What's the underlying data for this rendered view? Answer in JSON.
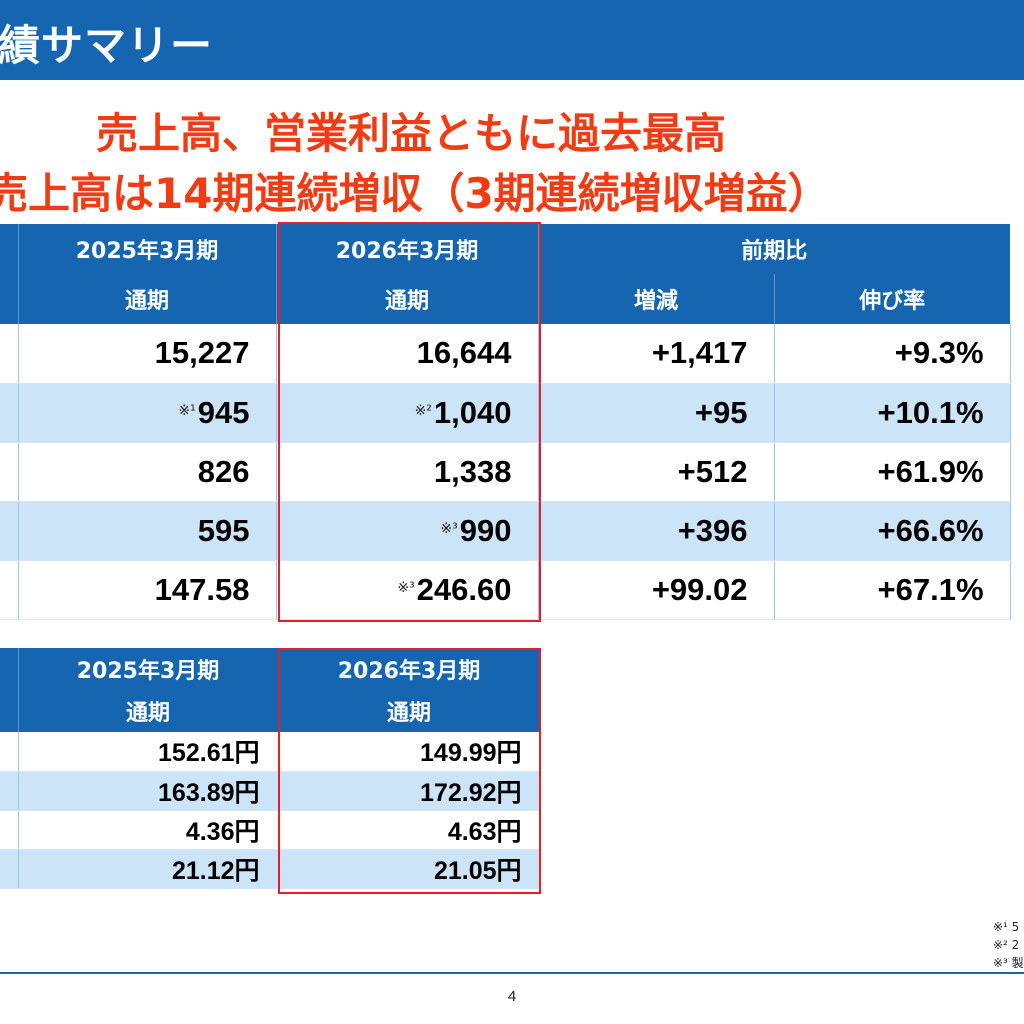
{
  "header": {
    "title": "績サマリー"
  },
  "headline": {
    "line1": "売上高、営業利益ともに過去最高",
    "line2": "売上高は14期連続増収（3期連続増収増益）"
  },
  "main_table": {
    "col_prev_period": "2025年3月期",
    "col_prev_sub": "通期",
    "col_curr_period": "2026年3月期",
    "col_curr_sub": "通期",
    "col_yoy": "前期比",
    "col_change": "増減",
    "col_growth": "伸び率",
    "rows": [
      {
        "prev": "15,227",
        "prev_note": "",
        "curr": "16,644",
        "curr_note": "",
        "change": "+1,417",
        "growth": "+9.3%"
      },
      {
        "prev": "945",
        "prev_note": "※¹",
        "curr": "1,040",
        "curr_note": "※²",
        "change": "+95",
        "growth": "+10.1%"
      },
      {
        "prev": "826",
        "prev_note": "",
        "curr": "1,338",
        "curr_note": "",
        "change": "+512",
        "growth": "+61.9%"
      },
      {
        "prev": "595",
        "prev_note": "",
        "curr": "990",
        "curr_note": "※³",
        "change": "+396",
        "growth": "+66.6%"
      },
      {
        "prev": "147.58",
        "prev_note": "",
        "curr": "246.60",
        "curr_note": "※³",
        "change": "+99.02",
        "growth": "+67.1%"
      }
    ]
  },
  "sub_table": {
    "col_prev_period": "2025年3月期",
    "col_prev_sub": "通期",
    "col_curr_period": "2026年3月期",
    "col_curr_sub": "通期",
    "rows": [
      {
        "prev": "152.61円",
        "curr": "149.99円"
      },
      {
        "prev": "163.89円",
        "curr": "172.92円"
      },
      {
        "prev": "4.36円",
        "curr": "4.63円"
      },
      {
        "prev": "21.12円",
        "curr": "21.05円"
      }
    ]
  },
  "footnotes": [
    "※¹ 5",
    "※² 2",
    "※³ 製"
  ],
  "page_number": "4",
  "colors": {
    "brand_blue": "#1565b0",
    "headline_red": "#f03c14",
    "highlight_red": "#e0202a",
    "row_alt": "#cce4f7"
  }
}
